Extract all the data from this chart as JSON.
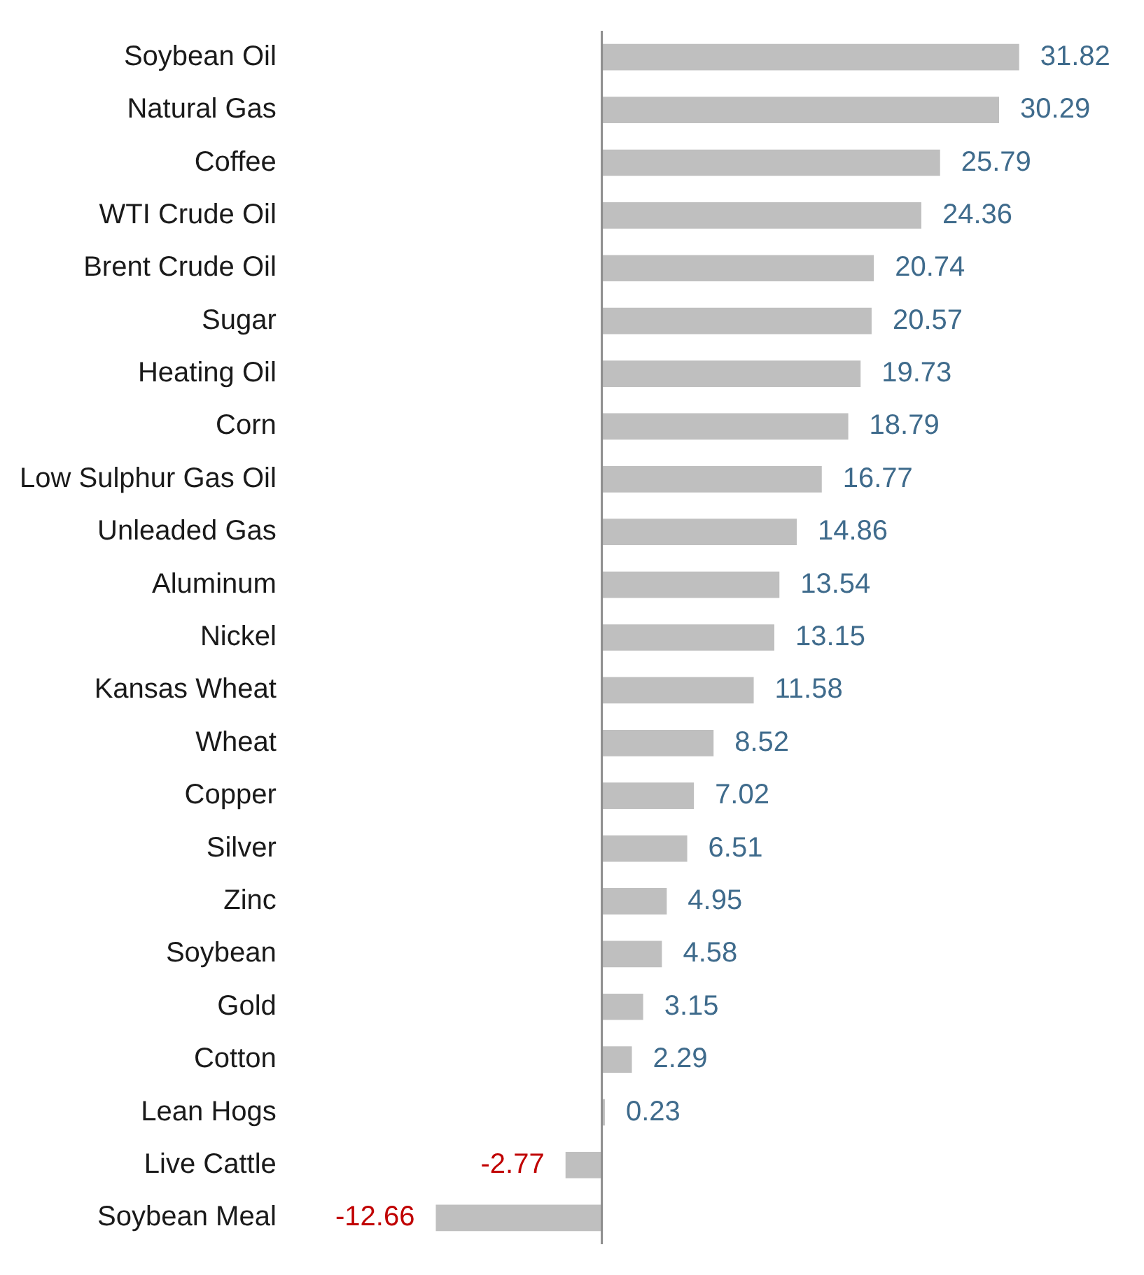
{
  "chart_data": {
    "type": "bar",
    "orientation": "horizontal",
    "data_labels": true,
    "legend": false,
    "categories": [
      "Soybean Oil",
      "Natural Gas",
      "Coffee",
      "WTI Crude Oil",
      "Brent Crude Oil",
      "Sugar",
      "Heating Oil",
      "Corn",
      "Low Sulphur Gas Oil",
      "Unleaded Gas",
      "Aluminum",
      "Nickel",
      "Kansas Wheat",
      "Wheat",
      "Copper",
      "Silver",
      "Zinc",
      "Soybean",
      "Gold",
      "Cotton",
      "Lean Hogs",
      "Live Cattle",
      "Soybean Meal"
    ],
    "values": [
      31.82,
      30.29,
      25.79,
      24.36,
      20.74,
      20.57,
      19.73,
      18.79,
      16.77,
      14.86,
      13.54,
      13.15,
      11.58,
      8.52,
      7.02,
      6.51,
      4.95,
      4.58,
      3.15,
      2.29,
      0.23,
      -2.77,
      -12.66
    ],
    "color": "#bfbfbf"
  }
}
